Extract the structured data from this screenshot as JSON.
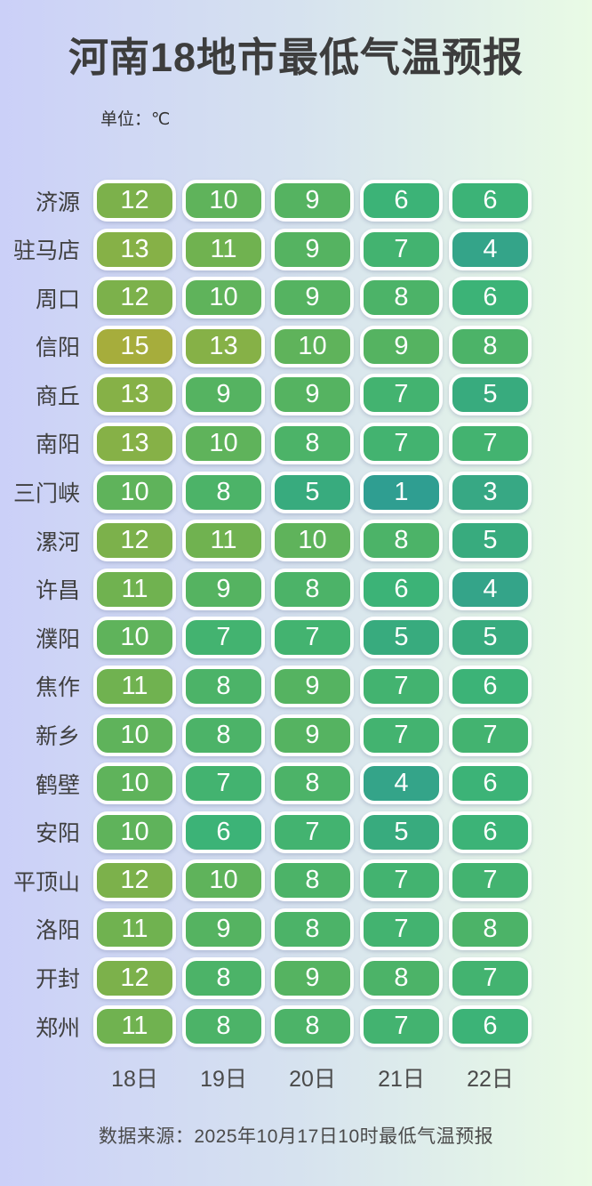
{
  "page": {
    "title": "河南18地市最低气温预报",
    "unit_label": "单位：℃",
    "source_note": "数据来源：2025年10月17日10时最低气温预报"
  },
  "colors": {
    "background_left": "#cbd0f8",
    "background_right": "#e9fbe5",
    "cell_border": "#ffffff",
    "cell_text": "#ffffff",
    "title_text": "#3d3d3d",
    "city_label_text": "#3f3f3f",
    "date_label_text": "#4a4a4a"
  },
  "chart_data": {
    "type": "heatmap",
    "title": "河南18地市最低气温预报",
    "unit": "℃",
    "columns": [
      "18日",
      "19日",
      "20日",
      "21日",
      "22日"
    ],
    "rows": [
      {
        "city": "济源",
        "values": [
          12,
          10,
          9,
          6,
          6
        ]
      },
      {
        "city": "驻马店",
        "values": [
          13,
          11,
          9,
          7,
          4
        ]
      },
      {
        "city": "周口",
        "values": [
          12,
          10,
          9,
          8,
          6
        ]
      },
      {
        "city": "信阳",
        "values": [
          15,
          13,
          10,
          9,
          8
        ]
      },
      {
        "city": "商丘",
        "values": [
          13,
          9,
          9,
          7,
          5
        ]
      },
      {
        "city": "南阳",
        "values": [
          13,
          10,
          8,
          7,
          7
        ]
      },
      {
        "city": "三门峡",
        "values": [
          10,
          8,
          5,
          1,
          3
        ]
      },
      {
        "city": "漯河",
        "values": [
          12,
          11,
          10,
          8,
          5
        ]
      },
      {
        "city": "许昌",
        "values": [
          11,
          9,
          8,
          6,
          4
        ]
      },
      {
        "city": "濮阳",
        "values": [
          10,
          7,
          7,
          5,
          5
        ]
      },
      {
        "city": "焦作",
        "values": [
          11,
          8,
          9,
          7,
          6
        ]
      },
      {
        "city": "新乡",
        "values": [
          10,
          8,
          9,
          7,
          7
        ]
      },
      {
        "city": "鹤壁",
        "values": [
          10,
          7,
          8,
          4,
          6
        ]
      },
      {
        "city": "安阳",
        "values": [
          10,
          6,
          7,
          5,
          6
        ]
      },
      {
        "city": "平顶山",
        "values": [
          12,
          10,
          8,
          7,
          7
        ]
      },
      {
        "city": "洛阳",
        "values": [
          11,
          9,
          8,
          7,
          8
        ]
      },
      {
        "city": "开封",
        "values": [
          12,
          8,
          9,
          8,
          7
        ]
      },
      {
        "city": "郑州",
        "values": [
          11,
          8,
          8,
          7,
          6
        ]
      }
    ],
    "color_scale": {
      "1": "#2f9e91",
      "3": "#37a884",
      "4": "#34a489",
      "5": "#38ab7e",
      "6": "#3cb377",
      "7": "#43b370",
      "8": "#4cb368",
      "9": "#55b361",
      "10": "#5fb35b",
      "11": "#70b250",
      "12": "#7cb14b",
      "13": "#86b147",
      "15": "#a6ad3c"
    },
    "legend_position": "none",
    "grid": false
  }
}
